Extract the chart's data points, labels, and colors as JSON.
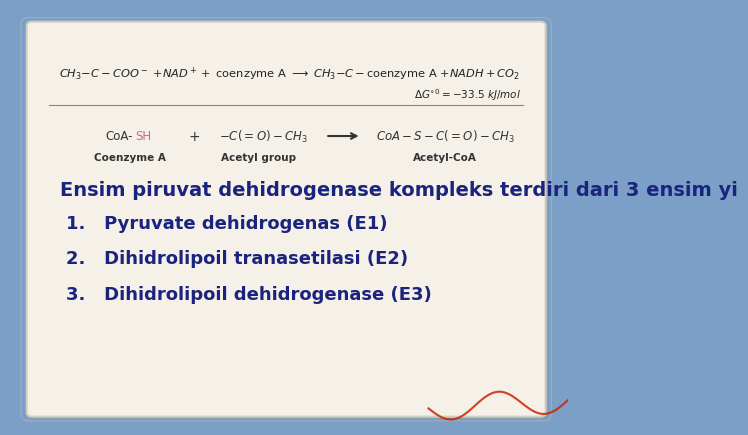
{
  "background_color": "#7b9fc7",
  "paper_color": "#f5f0e8",
  "title_text": "Ensim piruvat dehidrogenase kompleks terdiri dari 3 ensim yi",
  "items": [
    "1.   Pyruvate dehidrogenas (E1)",
    "2.   Dihidrolipoil tranasetilasi (E2)",
    "3.   Dihidrolipoil dehidrogenase (E3)"
  ],
  "text_color": "#1a237e",
  "label_coenzyme": "Coenzyme A",
  "label_acetyl_group": "Acetyl group",
  "label_acetyl_coa": "Acetyl-CoA",
  "font_size_title": 14,
  "font_size_items": 13,
  "font_size_reaction": 9,
  "red_string_color": "#cc2200",
  "line_color": "#888888",
  "dark_text": "#222222",
  "bold_label_color": "#333333",
  "coa_sh_color": "#cc6699"
}
